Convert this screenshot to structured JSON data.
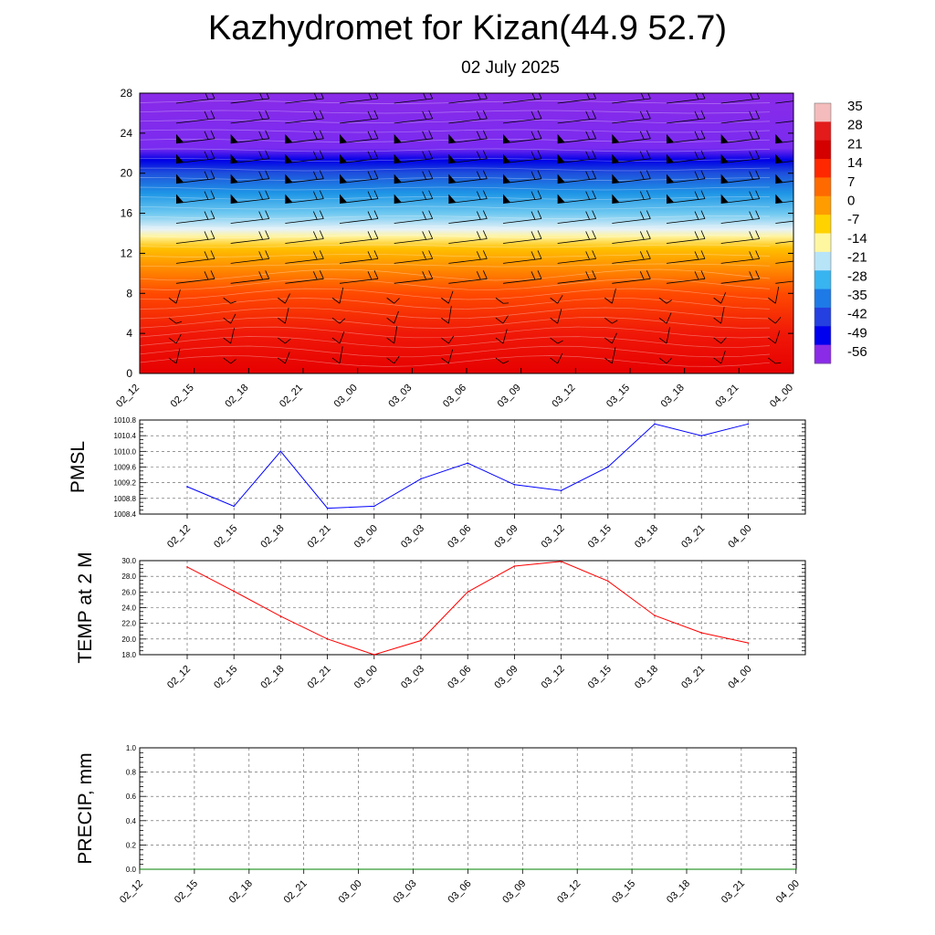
{
  "title": "Kazhydromet for Kizan(44.9 52.7)",
  "subtitle": "02 July 2025",
  "colors": {
    "pmsl_line": "#0000ff",
    "temp_line": "#ff0000",
    "precip_line": "#008000",
    "grid": "#555555"
  },
  "chart_data": [
    {
      "type": "heatmap",
      "title": "",
      "xlabel": "",
      "ylabel": "",
      "x_ticks": [
        "02_12",
        "02_15",
        "02_18",
        "02_21",
        "03_00",
        "03_03",
        "03_06",
        "03_09",
        "03_12",
        "03_15",
        "03_18",
        "03_21",
        "04_00"
      ],
      "y_ticks": [
        0,
        4,
        8,
        12,
        16,
        20,
        24,
        28
      ],
      "ylim": [
        0,
        28
      ],
      "colorbar_labels": [
        "35",
        "28",
        "21",
        "14",
        "7",
        "0",
        "-7",
        "-14",
        "-21",
        "-28",
        "-35",
        "-42",
        "-49",
        "-56"
      ],
      "layers": [
        {
          "y": 0,
          "color": "#e60000"
        },
        {
          "y": 4,
          "color": "#f01808"
        },
        {
          "y": 8,
          "color": "#ff4a00"
        },
        {
          "y": 10.5,
          "color": "#ff8c00"
        },
        {
          "y": 12.5,
          "color": "#ffc000"
        },
        {
          "y": 13.7,
          "color": "#fff4a0"
        },
        {
          "y": 14.4,
          "color": "#e6f2f8"
        },
        {
          "y": 16,
          "color": "#6ec8f0"
        },
        {
          "y": 18,
          "color": "#1e96e6"
        },
        {
          "y": 20,
          "color": "#1e50dc"
        },
        {
          "y": 21.3,
          "color": "#0000e6"
        },
        {
          "y": 22.5,
          "color": "#7a2bf0"
        },
        {
          "y": 28,
          "color": "#8a2be8"
        }
      ],
      "wind_levels": [
        1,
        3,
        5,
        7,
        9,
        11,
        13,
        15,
        17,
        19,
        21,
        23,
        25,
        27
      ]
    },
    {
      "type": "line",
      "title": "",
      "xlabel": "",
      "ylabel": "PMSL",
      "categories": [
        "02_12",
        "02_15",
        "02_18",
        "02_21",
        "03_00",
        "03_03",
        "03_06",
        "03_09",
        "03_12",
        "03_15",
        "03_18",
        "03_21",
        "04_00"
      ],
      "values": [
        1009.1,
        1008.6,
        1010.0,
        1008.55,
        1008.6,
        1009.3,
        1009.7,
        1009.15,
        1009.0,
        1009.6,
        1010.7,
        1010.4,
        1010.7
      ],
      "ylim": [
        1008.4,
        1010.8
      ],
      "y_ticks": [
        "1008.4",
        "1008.8",
        "1009.2",
        "1009.6",
        "1010.0",
        "1010.4",
        "1010.8"
      ]
    },
    {
      "type": "line",
      "title": "",
      "xlabel": "",
      "ylabel": "TEMP at 2 M",
      "categories": [
        "02_12",
        "02_15",
        "02_18",
        "02_21",
        "03_00",
        "03_03",
        "03_06",
        "03_09",
        "03_12",
        "03_15",
        "03_18",
        "03_21",
        "04_00"
      ],
      "values": [
        29.2,
        26.1,
        22.9,
        20.0,
        18.0,
        19.8,
        26.0,
        29.3,
        29.9,
        27.4,
        23.0,
        20.8,
        19.5
      ],
      "ylim": [
        18.0,
        30.0
      ],
      "y_ticks": [
        "18.0",
        "20.0",
        "22.0",
        "24.0",
        "26.0",
        "28.0",
        "30.0"
      ]
    },
    {
      "type": "line",
      "title": "",
      "xlabel": "",
      "ylabel": "PRECIP, mm",
      "categories": [
        "02_12",
        "02_15",
        "02_18",
        "02_21",
        "03_00",
        "03_03",
        "03_06",
        "03_09",
        "03_12",
        "03_15",
        "03_18",
        "03_21",
        "04_00"
      ],
      "values": [
        0,
        0,
        0,
        0,
        0,
        0,
        0,
        0,
        0,
        0,
        0,
        0,
        0
      ],
      "ylim": [
        0.0,
        1.0
      ],
      "y_ticks": [
        "0.0",
        "0.2",
        "0.4",
        "0.6",
        "0.8",
        "1.0"
      ]
    }
  ]
}
